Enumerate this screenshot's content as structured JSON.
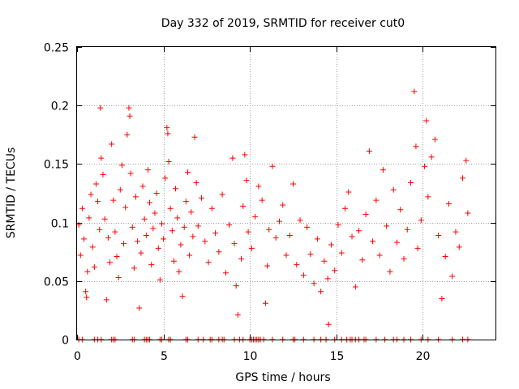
{
  "chart_data": {
    "type": "scatter",
    "title": "Day 332 of 2019, SRMTID for receiver cut0",
    "xlabel": "GPS time / hours",
    "ylabel": "SRMTID / TECUs",
    "xlim": [
      0,
      24.2
    ],
    "ylim": [
      0,
      0.25
    ],
    "xticks": [
      0,
      5,
      10,
      15,
      20
    ],
    "xtick_labels": [
      "0",
      "5",
      "10",
      "15",
      "20"
    ],
    "yticks": [
      0,
      0.05,
      0.1,
      0.15,
      0.2,
      0.25
    ],
    "ytick_labels": [
      "0",
      "0.05",
      "0.1",
      "0.15",
      "0.2",
      "0.25"
    ],
    "grid": true,
    "marker": "+",
    "color": "#ff0000",
    "series": [
      {
        "name": "SRMTID",
        "points": [
          [
            0.1,
            0.098
          ],
          [
            0.2,
            0.072
          ],
          [
            0.3,
            0.112
          ],
          [
            0.4,
            0.086
          ],
          [
            0.5,
            0.041
          ],
          [
            0.55,
            0.036
          ],
          [
            0.6,
            0.058
          ],
          [
            0.7,
            0.104
          ],
          [
            0.8,
            0.124
          ],
          [
            0.9,
            0.079
          ],
          [
            1.0,
            0.062
          ],
          [
            1.1,
            0.133
          ],
          [
            1.2,
            0.118
          ],
          [
            1.3,
            0.094
          ],
          [
            1.35,
            0.198
          ],
          [
            1.4,
            0.155
          ],
          [
            1.5,
            0.141
          ],
          [
            1.6,
            0.103
          ],
          [
            1.7,
            0.034
          ],
          [
            1.8,
            0.087
          ],
          [
            1.9,
            0.066
          ],
          [
            2.0,
            0.167
          ],
          [
            2.1,
            0.119
          ],
          [
            2.2,
            0.092
          ],
          [
            2.3,
            0.071
          ],
          [
            2.4,
            0.053
          ],
          [
            2.5,
            0.128
          ],
          [
            2.6,
            0.149
          ],
          [
            2.7,
            0.082
          ],
          [
            2.8,
            0.113
          ],
          [
            2.9,
            0.175
          ],
          [
            3.0,
            0.198
          ],
          [
            3.05,
            0.191
          ],
          [
            3.1,
            0.142
          ],
          [
            3.2,
            0.096
          ],
          [
            3.3,
            0.061
          ],
          [
            3.4,
            0.122
          ],
          [
            3.5,
            0.084
          ],
          [
            3.6,
            0.027
          ],
          [
            3.7,
            0.074
          ],
          [
            3.8,
            0.131
          ],
          [
            3.9,
            0.103
          ],
          [
            4.0,
            0.089
          ],
          [
            4.1,
            0.145
          ],
          [
            4.2,
            0.117
          ],
          [
            4.3,
            0.064
          ],
          [
            4.4,
            0.095
          ],
          [
            4.5,
            0.108
          ],
          [
            4.6,
            0.125
          ],
          [
            4.7,
            0.078
          ],
          [
            4.8,
            0.051
          ],
          [
            4.9,
            0.099
          ],
          [
            5.0,
            0.086
          ],
          [
            5.1,
            0.138
          ],
          [
            5.2,
            0.181
          ],
          [
            5.25,
            0.176
          ],
          [
            5.3,
            0.152
          ],
          [
            5.4,
            0.112
          ],
          [
            5.5,
            0.093
          ],
          [
            5.6,
            0.067
          ],
          [
            5.7,
            0.129
          ],
          [
            5.8,
            0.104
          ],
          [
            5.9,
            0.058
          ],
          [
            6.0,
            0.081
          ],
          [
            6.1,
            0.037
          ],
          [
            6.2,
            0.096
          ],
          [
            6.3,
            0.118
          ],
          [
            6.4,
            0.143
          ],
          [
            6.5,
            0.072
          ],
          [
            6.6,
            0.109
          ],
          [
            6.7,
            0.088
          ],
          [
            6.8,
            0.173
          ],
          [
            6.9,
            0.134
          ],
          [
            7.0,
            0.097
          ],
          [
            7.2,
            0.121
          ],
          [
            7.4,
            0.084
          ],
          [
            7.6,
            0.066
          ],
          [
            7.8,
            0.112
          ],
          [
            8.0,
            0.091
          ],
          [
            8.2,
            0.075
          ],
          [
            8.4,
            0.124
          ],
          [
            8.6,
            0.057
          ],
          [
            8.8,
            0.098
          ],
          [
            9.0,
            0.155
          ],
          [
            9.1,
            0.082
          ],
          [
            9.2,
            0.046
          ],
          [
            9.3,
            0.021
          ],
          [
            9.5,
            0.069
          ],
          [
            9.6,
            0.114
          ],
          [
            9.7,
            0.158
          ],
          [
            9.8,
            0.136
          ],
          [
            9.9,
            0.092
          ],
          [
            10.1,
            0.078
          ],
          [
            10.3,
            0.105
          ],
          [
            10.5,
            0.131
          ],
          [
            10.7,
            0.119
          ],
          [
            10.9,
            0.031
          ],
          [
            11.0,
            0.063
          ],
          [
            11.1,
            0.094
          ],
          [
            11.3,
            0.148
          ],
          [
            11.5,
            0.087
          ],
          [
            11.7,
            0.101
          ],
          [
            11.9,
            0.115
          ],
          [
            12.1,
            0.072
          ],
          [
            12.3,
            0.089
          ],
          [
            12.5,
            0.133
          ],
          [
            12.7,
            0.064
          ],
          [
            12.9,
            0.102
          ],
          [
            13.1,
            0.055
          ],
          [
            13.3,
            0.096
          ],
          [
            13.5,
            0.073
          ],
          [
            13.7,
            0.048
          ],
          [
            13.9,
            0.086
          ],
          [
            14.1,
            0.041
          ],
          [
            14.3,
            0.067
          ],
          [
            14.5,
            0.052
          ],
          [
            14.55,
            0.013
          ],
          [
            14.7,
            0.081
          ],
          [
            14.9,
            0.059
          ],
          [
            15.1,
            0.098
          ],
          [
            15.3,
            0.074
          ],
          [
            15.5,
            0.112
          ],
          [
            15.7,
            0.126
          ],
          [
            15.9,
            0.088
          ],
          [
            16.1,
            0.045
          ],
          [
            16.3,
            0.093
          ],
          [
            16.5,
            0.068
          ],
          [
            16.7,
            0.107
          ],
          [
            16.9,
            0.161
          ],
          [
            17.1,
            0.084
          ],
          [
            17.3,
            0.119
          ],
          [
            17.5,
            0.072
          ],
          [
            17.7,
            0.145
          ],
          [
            17.9,
            0.097
          ],
          [
            18.1,
            0.058
          ],
          [
            18.3,
            0.128
          ],
          [
            18.5,
            0.083
          ],
          [
            18.7,
            0.111
          ],
          [
            18.9,
            0.069
          ],
          [
            19.1,
            0.094
          ],
          [
            19.3,
            0.134
          ],
          [
            19.5,
            0.212
          ],
          [
            19.6,
            0.165
          ],
          [
            19.7,
            0.078
          ],
          [
            19.9,
            0.102
          ],
          [
            20.1,
            0.148
          ],
          [
            20.2,
            0.187
          ],
          [
            20.3,
            0.122
          ],
          [
            20.5,
            0.156
          ],
          [
            20.7,
            0.171
          ],
          [
            20.9,
            0.089
          ],
          [
            21.1,
            0.035
          ],
          [
            21.3,
            0.071
          ],
          [
            21.5,
            0.116
          ],
          [
            21.7,
            0.054
          ],
          [
            21.9,
            0.092
          ],
          [
            22.1,
            0.079
          ],
          [
            22.3,
            0.138
          ],
          [
            22.5,
            0.153
          ],
          [
            22.6,
            0.108
          ]
        ]
      }
    ],
    "zero_points_x": [
      0.1,
      0.3,
      1.0,
      1.2,
      1.4,
      2.0,
      2.1,
      2.2,
      3.2,
      3.3,
      3.9,
      4.0,
      4.1,
      4.2,
      4.8,
      4.9,
      5.3,
      5.4,
      6.3,
      6.4,
      7.0,
      7.3,
      7.7,
      7.8,
      8.2,
      8.4,
      8.5,
      9.1,
      9.4,
      9.6,
      10.0,
      10.1,
      10.2,
      10.3,
      10.4,
      10.5,
      10.6,
      10.8,
      11.3,
      11.9,
      12.5,
      12.6,
      13.1,
      13.7,
      14.1,
      14.4,
      14.9,
      15.3,
      15.6,
      15.8,
      15.9,
      16.1,
      16.3,
      16.6,
      16.7,
      17.3,
      17.8,
      18.3,
      18.5,
      18.9,
      19.3,
      19.9,
      20.3,
      20.9,
      21.7,
      22.3,
      22.6
    ]
  }
}
